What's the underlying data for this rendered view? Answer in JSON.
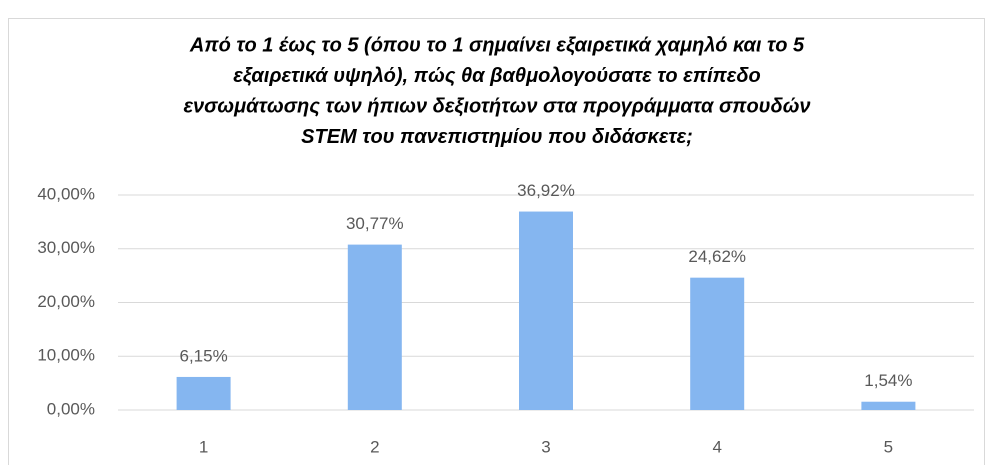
{
  "chart_data": {
    "type": "bar",
    "title": [
      "Από το 1 έως το 5 (όπου το 1 σημαίνει εξαιρετικά χαμηλό και το 5",
      "εξαιρετικά υψηλό), πώς θα βαθμολογούσατε το επίπεδο",
      "ενσωμάτωσης των ήπιων δεξιοτήτων στα προγράμματα σπουδών",
      "STEM του πανεπιστημίου που διδάσκετε;"
    ],
    "categories": [
      "1",
      "2",
      "3",
      "4",
      "5"
    ],
    "values": [
      6.15,
      30.77,
      36.92,
      24.62,
      1.54
    ],
    "value_labels": [
      "6,15%",
      "30,77%",
      "36,92%",
      "24,62%",
      "1,54%"
    ],
    "color": "#85b6f0",
    "ylim": [
      0,
      40
    ],
    "yticks": [
      {
        "value": 0,
        "label": "0,00%"
      },
      {
        "value": 10,
        "label": "10,00%"
      },
      {
        "value": 20,
        "label": "20,00%"
      },
      {
        "value": 30,
        "label": "30,00%"
      },
      {
        "value": 40,
        "label": "40,00%"
      }
    ],
    "grid": true
  }
}
